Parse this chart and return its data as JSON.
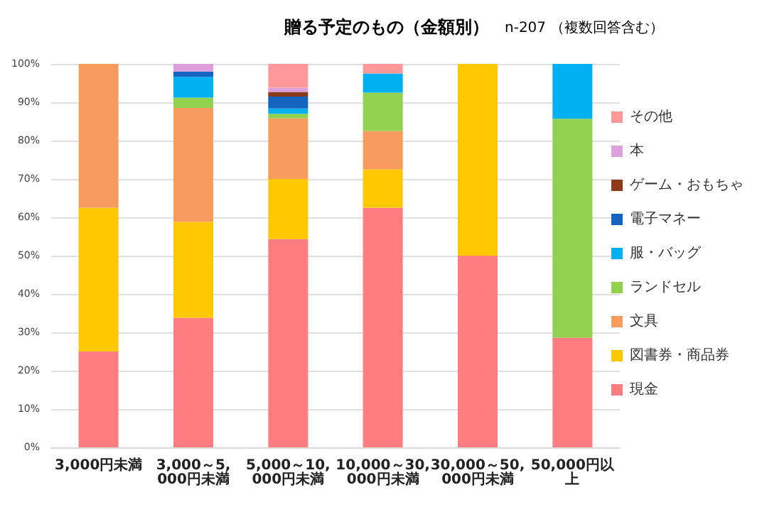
{
  "chart_data": {
    "type": "bar",
    "stacked": true,
    "title": "贈る予定のもの（金額別）",
    "subtitle": "n-207 （複数回答含む）",
    "categories": [
      "3,000円未満",
      "3,000～5,000円未満",
      "5,000～10,000円未満",
      "10,000～30,000円未満",
      "30,000～50,000円未満",
      "50,000円以上"
    ],
    "series": [
      {
        "name": "現金",
        "color": "#ff7c80",
        "values": [
          25,
          33.8,
          54.3,
          62.5,
          50,
          28.6
        ]
      },
      {
        "name": "図書券・商品券",
        "color": "#ffc800",
        "values": [
          37.5,
          25,
          15.7,
          10,
          50,
          0
        ]
      },
      {
        "name": "文具",
        "color": "#f79b5f",
        "values": [
          37.5,
          29.7,
          15.8,
          10,
          0,
          0
        ]
      },
      {
        "name": "ランドセル",
        "color": "#92d050",
        "values": [
          0,
          2.7,
          1.2,
          10,
          0,
          57.1
        ]
      },
      {
        "name": "服・バッグ",
        "color": "#00b0f0",
        "values": [
          0,
          5.4,
          1.4,
          5,
          0,
          14.3
        ]
      },
      {
        "name": "電子マネー",
        "color": "#1565c0",
        "values": [
          0,
          1.4,
          3.1,
          0,
          0,
          0
        ]
      },
      {
        "name": "ゲーム・おもちゃ",
        "color": "#8b3a1a",
        "values": [
          0,
          0,
          1.2,
          0,
          0,
          0
        ]
      },
      {
        "name": "本",
        "color": "#dda0dd",
        "values": [
          0,
          2,
          1.1,
          0,
          0,
          0
        ]
      },
      {
        "name": "その他",
        "color": "#ff9999",
        "values": [
          0,
          0,
          6.2,
          2.5,
          0,
          0
        ]
      }
    ],
    "ylim": [
      0,
      100
    ],
    "yticks": [
      {
        "value": 0,
        "label": "0%"
      },
      {
        "value": 10,
        "label": "10%"
      },
      {
        "value": 20,
        "label": "20%"
      },
      {
        "value": 30,
        "label": "30%"
      },
      {
        "value": 40,
        "label": "40%"
      },
      {
        "value": 50,
        "label": "50%"
      },
      {
        "value": 60,
        "label": "60%"
      },
      {
        "value": 70,
        "label": "70%"
      },
      {
        "value": 80,
        "label": "80%"
      },
      {
        "value": 90,
        "label": "90%"
      },
      {
        "value": 100,
        "label": "100%"
      }
    ],
    "grid": "y",
    "legend": "right"
  }
}
